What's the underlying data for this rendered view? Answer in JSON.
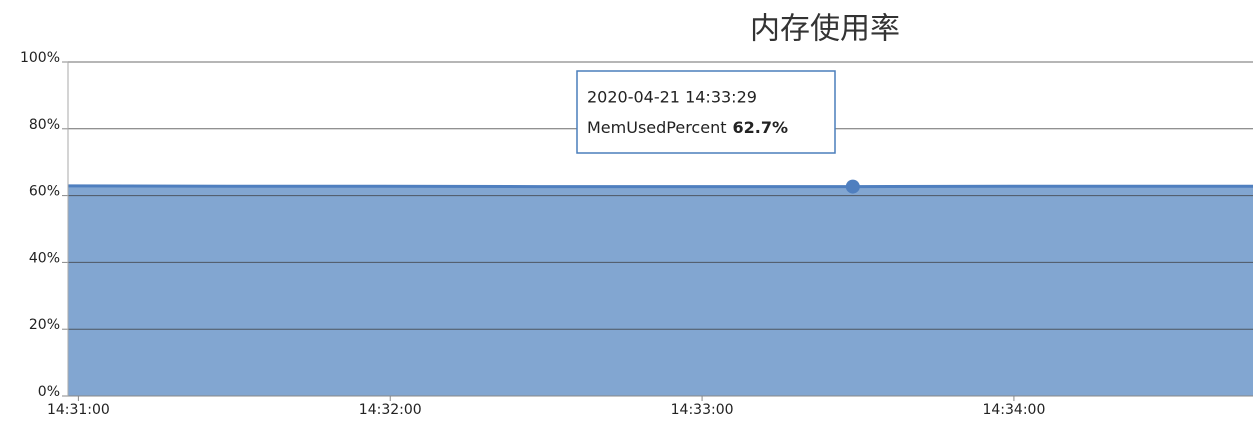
{
  "chart_data": {
    "type": "area",
    "title": "内存使用率",
    "x": [
      "14:30:58",
      "14:31:29",
      "14:31:59",
      "14:32:29",
      "14:32:59",
      "14:33:29",
      "14:33:59",
      "14:34:29",
      "14:34:46"
    ],
    "series": [
      {
        "name": "MemUsedPercent",
        "color": "#4f7fbf",
        "fill": "#82a6d1",
        "values": [
          62.9,
          62.8,
          62.8,
          62.7,
          62.7,
          62.7,
          62.8,
          62.8,
          62.8
        ]
      }
    ],
    "xlim": [
      "14:30:58",
      "14:34:46"
    ],
    "xticks": [
      "14:31:00",
      "14:32:00",
      "14:33:00",
      "14:34:00"
    ],
    "ylim": [
      0,
      100
    ],
    "yticks": [
      {
        "value": 0,
        "label": "0%"
      },
      {
        "value": 20,
        "label": "20%"
      },
      {
        "value": 40,
        "label": "40%"
      },
      {
        "value": 60,
        "label": "60%"
      },
      {
        "value": 80,
        "label": "80%"
      },
      {
        "value": 100,
        "label": "100%"
      }
    ],
    "grid": true,
    "tooltip": {
      "title": "2020-04-21 14:33:29",
      "value_label": "62.7%"
    }
  }
}
